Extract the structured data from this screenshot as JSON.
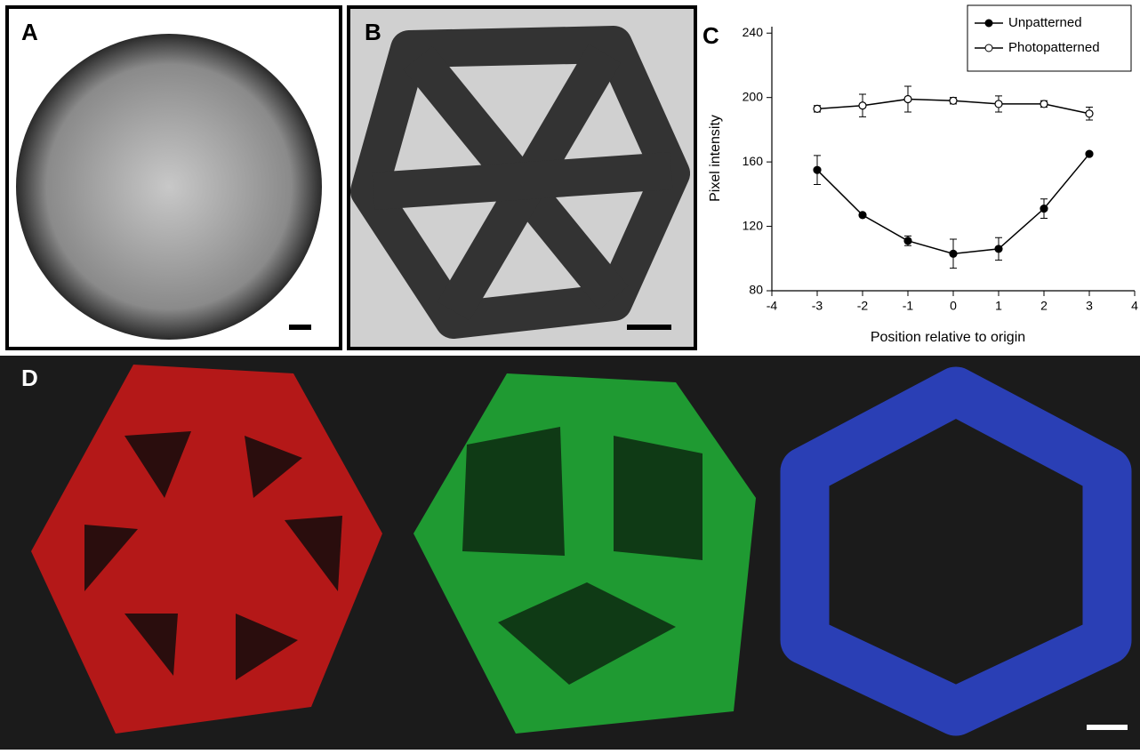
{
  "panel_labels": [
    "A",
    "B",
    "C",
    "D"
  ],
  "chart_data": {
    "type": "line",
    "x_label": "Position relative to origin",
    "y_label": "Pixel intensity",
    "x": [
      -3,
      -2,
      -1,
      0,
      1,
      2,
      3
    ],
    "series": [
      {
        "name": "Unpatterned",
        "color": "#000000",
        "marker_fill": "#000000",
        "values": [
          155,
          127,
          111,
          103,
          106,
          131,
          165
        ],
        "errors": [
          9,
          1,
          3,
          9,
          7,
          6,
          1
        ]
      },
      {
        "name": "Photopatterned",
        "color": "#000000",
        "marker_fill": "#ffffff",
        "values": [
          193,
          195,
          199,
          198,
          196,
          196,
          190
        ],
        "errors": [
          2,
          7,
          8,
          2,
          5,
          2,
          4
        ]
      }
    ],
    "xlim": [
      -4,
      4
    ],
    "xticks": [
      -4,
      -3,
      -2,
      -1,
      0,
      1,
      2,
      3,
      4
    ],
    "ylim": [
      80,
      244
    ],
    "yticks": [
      80,
      120,
      160,
      200,
      240
    ],
    "legend": "upper-right"
  }
}
